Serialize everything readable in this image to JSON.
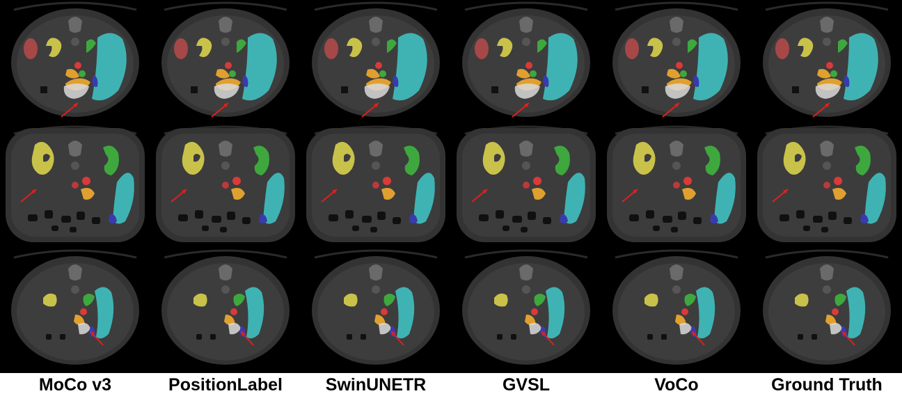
{
  "figure": {
    "columns": [
      {
        "label": "MoCo v3"
      },
      {
        "label": "PositionLabel"
      },
      {
        "label": "SwinUNETR"
      },
      {
        "label": "GVSL"
      },
      {
        "label": "VoCo"
      },
      {
        "label": "Ground Truth"
      }
    ],
    "rows": 3,
    "organ_colors": {
      "right_kidney_or_liver": "#b84a4a",
      "kidney_left": "#c9c24a",
      "kidney_right": "#3ea83e",
      "spleen": "#3fb3b3",
      "vessel": "#d93a3a",
      "pancreas": "#e0a030",
      "bowel": "#d9d9d9",
      "colon": "#3a3ab0"
    },
    "annotation_arrow_color": "#e02020",
    "background_color": "#000000"
  }
}
